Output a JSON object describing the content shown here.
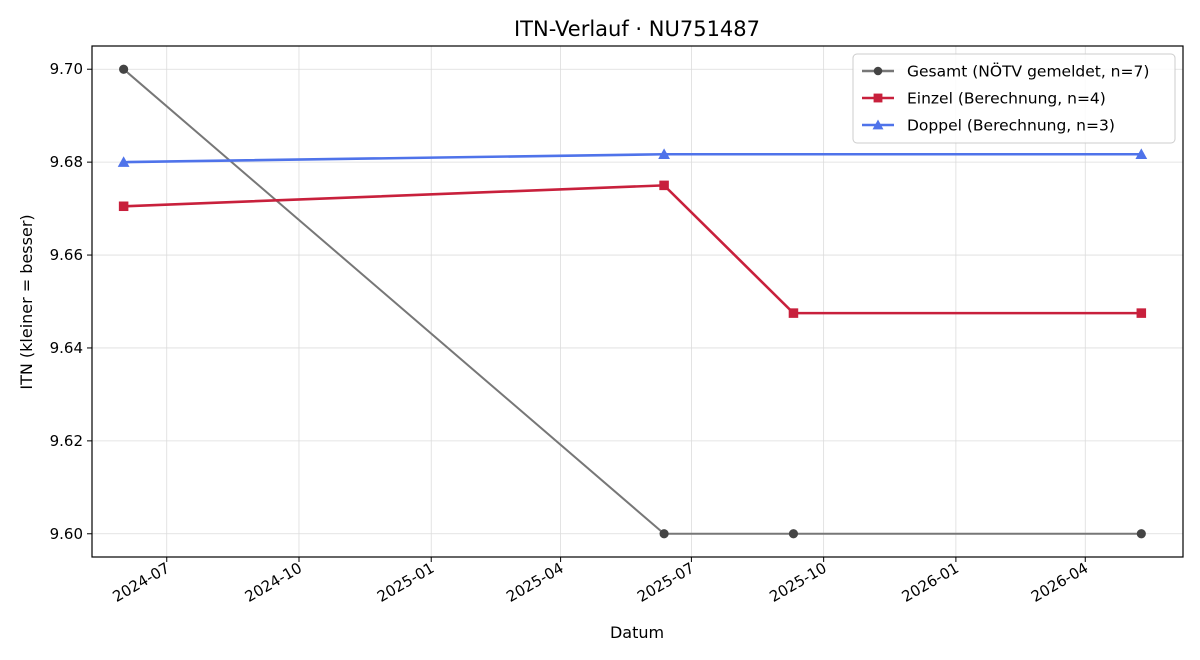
{
  "chart_data": {
    "type": "line",
    "title": "ITN-Verlauf · NU751487",
    "xlabel": "Datum",
    "ylabel": "ITN  (kleiner = besser)",
    "ylim": [
      9.595,
      9.705
    ],
    "xlim": [
      "2024-05-10",
      "2026-06-08"
    ],
    "grid": true,
    "legend_position": "top-right",
    "x_ticks": [
      "2024-07",
      "2024-10",
      "2025-01",
      "2025-04",
      "2025-07",
      "2025-10",
      "2026-01",
      "2026-04"
    ],
    "y_ticks": [
      "9.60",
      "9.62",
      "9.64",
      "9.66",
      "9.68",
      "9.70"
    ],
    "series": [
      {
        "name": "Gesamt (NÖTV gemeldet, n=7)",
        "color": "#777777",
        "marker_color": "#444444",
        "marker": "circle",
        "points": [
          {
            "x": "2024-06-01",
            "y": 9.7
          },
          {
            "x": "2025-06-12",
            "y": 9.6
          },
          {
            "x": "2025-09-10",
            "y": 9.6
          },
          {
            "x": "2026-05-10",
            "y": 9.6
          }
        ]
      },
      {
        "name": "Einzel (Berechnung, n=4)",
        "color": "#c8203c",
        "marker_color": "#c8203c",
        "marker": "square",
        "points": [
          {
            "x": "2024-06-01",
            "y": 9.6705
          },
          {
            "x": "2025-06-12",
            "y": 9.675
          },
          {
            "x": "2025-09-10",
            "y": 9.6475
          },
          {
            "x": "2026-05-10",
            "y": 9.6475
          }
        ]
      },
      {
        "name": "Doppel (Berechnung, n=3)",
        "color": "#4f73ea",
        "marker_color": "#4f73ea",
        "marker": "triangle",
        "points": [
          {
            "x": "2024-06-01",
            "y": 9.68
          },
          {
            "x": "2025-06-12",
            "y": 9.6817
          },
          {
            "x": "2026-05-10",
            "y": 9.6817
          }
        ]
      }
    ]
  }
}
